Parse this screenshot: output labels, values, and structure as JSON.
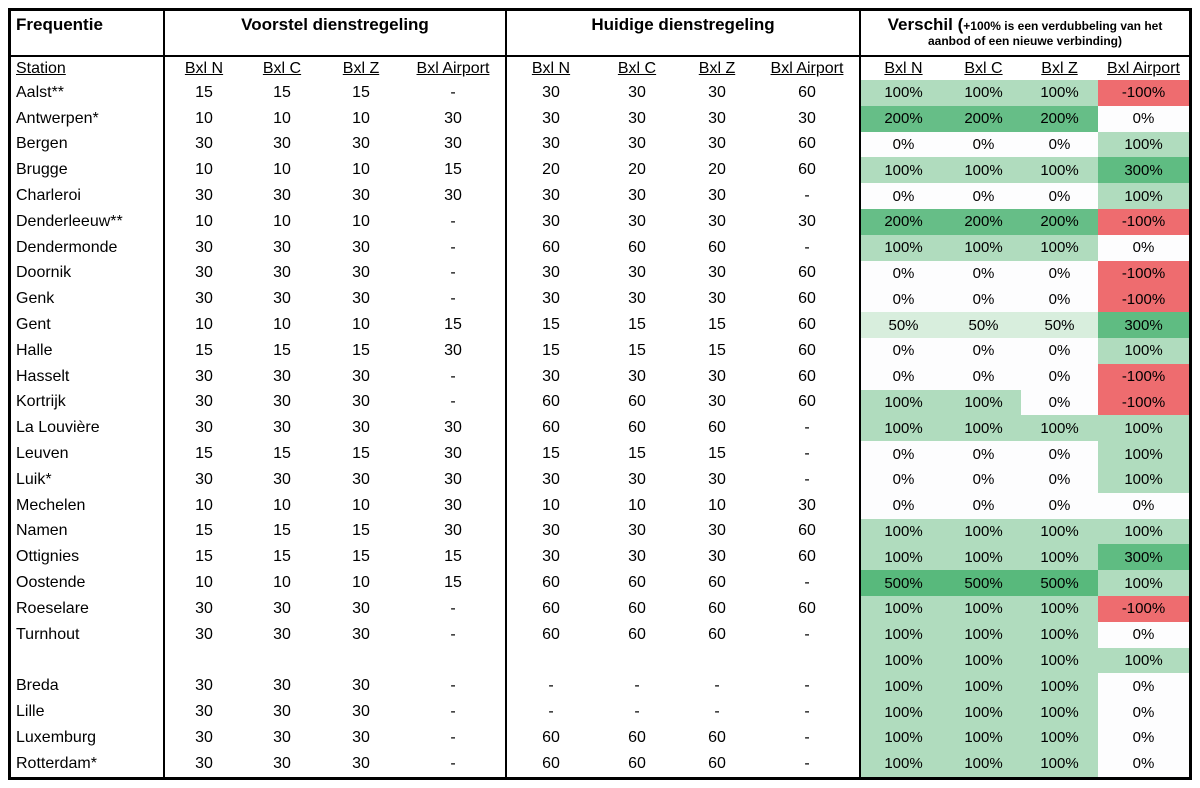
{
  "header": {
    "frequentie": "Frequentie",
    "voorstel": "Voorstel dienstregeling",
    "huidige": "Huidige dienstregeling",
    "verschil_title": "Verschil (",
    "verschil_note_line1": "+100% is een verdubbeling van het",
    "verschil_note_line2": "aanbod of een nieuwe verbinding)"
  },
  "subheader": {
    "station": "Station",
    "cols": [
      "Bxl N",
      "Bxl C",
      "Bxl Z",
      "Bxl Airport"
    ]
  },
  "diff_colors": {
    "-100%": "#ee6c6f",
    "0%": "#fdfdfe",
    "50%": "#d8eedd",
    "100%": "#b0dcbe",
    "200%": "#66be87",
    "300%": "#5fbc82",
    "500%": "#58b97c"
  },
  "rows": [
    {
      "station": "Aalst**",
      "voorstel": [
        "15",
        "15",
        "15",
        "-"
      ],
      "huidige": [
        "30",
        "30",
        "30",
        "60"
      ],
      "verschil": [
        "100%",
        "100%",
        "100%",
        "-100%"
      ]
    },
    {
      "station": "Antwerpen*",
      "voorstel": [
        "10",
        "10",
        "10",
        "30"
      ],
      "huidige": [
        "30",
        "30",
        "30",
        "30"
      ],
      "verschil": [
        "200%",
        "200%",
        "200%",
        "0%"
      ]
    },
    {
      "station": "Bergen",
      "voorstel": [
        "30",
        "30",
        "30",
        "30"
      ],
      "huidige": [
        "30",
        "30",
        "30",
        "60"
      ],
      "verschil": [
        "0%",
        "0%",
        "0%",
        "100%"
      ]
    },
    {
      "station": "Brugge",
      "voorstel": [
        "10",
        "10",
        "10",
        "15"
      ],
      "huidige": [
        "20",
        "20",
        "20",
        "60"
      ],
      "verschil": [
        "100%",
        "100%",
        "100%",
        "300%"
      ]
    },
    {
      "station": "Charleroi",
      "voorstel": [
        "30",
        "30",
        "30",
        "30"
      ],
      "huidige": [
        "30",
        "30",
        "30",
        "-"
      ],
      "verschil": [
        "0%",
        "0%",
        "0%",
        "100%"
      ]
    },
    {
      "station": "Denderleeuw**",
      "voorstel": [
        "10",
        "10",
        "10",
        "-"
      ],
      "huidige": [
        "30",
        "30",
        "30",
        "30"
      ],
      "verschil": [
        "200%",
        "200%",
        "200%",
        "-100%"
      ]
    },
    {
      "station": "Dendermonde",
      "voorstel": [
        "30",
        "30",
        "30",
        "-"
      ],
      "huidige": [
        "60",
        "60",
        "60",
        "-"
      ],
      "verschil": [
        "100%",
        "100%",
        "100%",
        "0%"
      ]
    },
    {
      "station": "Doornik",
      "voorstel": [
        "30",
        "30",
        "30",
        "-"
      ],
      "huidige": [
        "30",
        "30",
        "30",
        "60"
      ],
      "verschil": [
        "0%",
        "0%",
        "0%",
        "-100%"
      ]
    },
    {
      "station": "Genk",
      "voorstel": [
        "30",
        "30",
        "30",
        "-"
      ],
      "huidige": [
        "30",
        "30",
        "30",
        "60"
      ],
      "verschil": [
        "0%",
        "0%",
        "0%",
        "-100%"
      ]
    },
    {
      "station": "Gent",
      "voorstel": [
        "10",
        "10",
        "10",
        "15"
      ],
      "huidige": [
        "15",
        "15",
        "15",
        "60"
      ],
      "verschil": [
        "50%",
        "50%",
        "50%",
        "300%"
      ]
    },
    {
      "station": "Halle",
      "voorstel": [
        "15",
        "15",
        "15",
        "30"
      ],
      "huidige": [
        "15",
        "15",
        "15",
        "60"
      ],
      "verschil": [
        "0%",
        "0%",
        "0%",
        "100%"
      ]
    },
    {
      "station": "Hasselt",
      "voorstel": [
        "30",
        "30",
        "30",
        "-"
      ],
      "huidige": [
        "30",
        "30",
        "30",
        "60"
      ],
      "verschil": [
        "0%",
        "0%",
        "0%",
        "-100%"
      ]
    },
    {
      "station": "Kortrijk",
      "voorstel": [
        "30",
        "30",
        "30",
        "-"
      ],
      "huidige": [
        "60",
        "60",
        "30",
        "60"
      ],
      "verschil": [
        "100%",
        "100%",
        "0%",
        "-100%"
      ]
    },
    {
      "station": "La Louvière",
      "voorstel": [
        "30",
        "30",
        "30",
        "30"
      ],
      "huidige": [
        "60",
        "60",
        "60",
        "-"
      ],
      "verschil": [
        "100%",
        "100%",
        "100%",
        "100%"
      ]
    },
    {
      "station": "Leuven",
      "voorstel": [
        "15",
        "15",
        "15",
        "30"
      ],
      "huidige": [
        "15",
        "15",
        "15",
        "-"
      ],
      "verschil": [
        "0%",
        "0%",
        "0%",
        "100%"
      ]
    },
    {
      "station": "Luik*",
      "voorstel": [
        "30",
        "30",
        "30",
        "30"
      ],
      "huidige": [
        "30",
        "30",
        "30",
        "-"
      ],
      "verschil": [
        "0%",
        "0%",
        "0%",
        "100%"
      ]
    },
    {
      "station": "Mechelen",
      "voorstel": [
        "10",
        "10",
        "10",
        "30"
      ],
      "huidige": [
        "10",
        "10",
        "10",
        "30"
      ],
      "verschil": [
        "0%",
        "0%",
        "0%",
        "0%"
      ]
    },
    {
      "station": "Namen",
      "voorstel": [
        "15",
        "15",
        "15",
        "30"
      ],
      "huidige": [
        "30",
        "30",
        "30",
        "60"
      ],
      "verschil": [
        "100%",
        "100%",
        "100%",
        "100%"
      ]
    },
    {
      "station": "Ottignies",
      "voorstel": [
        "15",
        "15",
        "15",
        "15"
      ],
      "huidige": [
        "30",
        "30",
        "30",
        "60"
      ],
      "verschil": [
        "100%",
        "100%",
        "100%",
        "300%"
      ]
    },
    {
      "station": "Oostende",
      "voorstel": [
        "10",
        "10",
        "10",
        "15"
      ],
      "huidige": [
        "60",
        "60",
        "60",
        "-"
      ],
      "verschil": [
        "500%",
        "500%",
        "500%",
        "100%"
      ]
    },
    {
      "station": "Roeselare",
      "voorstel": [
        "30",
        "30",
        "30",
        "-"
      ],
      "huidige": [
        "60",
        "60",
        "60",
        "60"
      ],
      "verschil": [
        "100%",
        "100%",
        "100%",
        "-100%"
      ]
    },
    {
      "station": "Turnhout",
      "voorstel": [
        "30",
        "30",
        "30",
        "-"
      ],
      "huidige": [
        "60",
        "60",
        "60",
        "-"
      ],
      "verschil": [
        "100%",
        "100%",
        "100%",
        "0%"
      ]
    },
    {
      "station": "",
      "voorstel": [
        "",
        "",
        "",
        ""
      ],
      "huidige": [
        "",
        "",
        "",
        ""
      ],
      "verschil": [
        "100%",
        "100%",
        "100%",
        "100%"
      ]
    },
    {
      "station": "Breda",
      "voorstel": [
        "30",
        "30",
        "30",
        "-"
      ],
      "huidige": [
        "-",
        "-",
        "-",
        "-"
      ],
      "verschil": [
        "100%",
        "100%",
        "100%",
        "0%"
      ]
    },
    {
      "station": "Lille",
      "voorstel": [
        "30",
        "30",
        "30",
        "-"
      ],
      "huidige": [
        "-",
        "-",
        "-",
        "-"
      ],
      "verschil": [
        "100%",
        "100%",
        "100%",
        "0%"
      ]
    },
    {
      "station": "Luxemburg",
      "voorstel": [
        "30",
        "30",
        "30",
        "-"
      ],
      "huidige": [
        "60",
        "60",
        "60",
        "-"
      ],
      "verschil": [
        "100%",
        "100%",
        "100%",
        "0%"
      ]
    },
    {
      "station": "Rotterdam*",
      "voorstel": [
        "30",
        "30",
        "30",
        "-"
      ],
      "huidige": [
        "60",
        "60",
        "60",
        "-"
      ],
      "verschil": [
        "100%",
        "100%",
        "100%",
        "0%"
      ]
    }
  ]
}
